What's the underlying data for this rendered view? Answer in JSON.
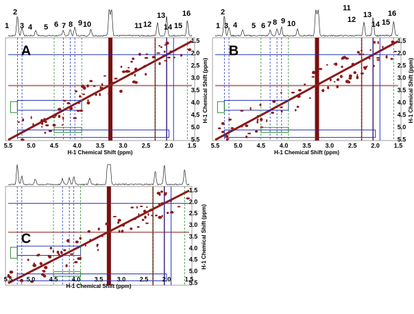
{
  "panels": [
    {
      "label": "A",
      "peaks": [
        "1",
        "2",
        "3",
        "4",
        "5",
        "6",
        "7",
        "8",
        "9",
        "10",
        "11",
        "12",
        "13",
        "14",
        "15",
        "16"
      ],
      "x_axis": {
        "title": "H-1 Chemical Shift (ppm)",
        "ticks": [
          "5.5",
          "5.0",
          "4.5",
          "4.0",
          "3.5",
          "3.0",
          "2.5",
          "2.0",
          "1.5"
        ]
      },
      "y_axis": {
        "title": "H-1 Chemical Shift (ppm)",
        "ticks": [
          "1.5",
          "2.0",
          "2.5",
          "3.0",
          "3.5",
          "4.0",
          "4.5",
          "5.0",
          "5.5"
        ]
      }
    },
    {
      "label": "B",
      "peaks": [
        "1",
        "2",
        "3",
        "4",
        "5",
        "6",
        "7",
        "8",
        "9",
        "10",
        "11",
        "12",
        "13",
        "14",
        "15",
        "16"
      ],
      "x_axis": {
        "title": "H-1 Chemical Shift (ppm)",
        "ticks": [
          "5.5",
          "5.0",
          "4.5",
          "4.0",
          "3.5",
          "3.0",
          "2.5",
          "2.0",
          "1.5"
        ]
      },
      "y_axis": {
        "title": "H-1 Chemical Shift (ppm)",
        "ticks": [
          "1.5",
          "2.0",
          "2.5",
          "3.0",
          "3.5",
          "4.0",
          "4.5",
          "5.0",
          "5.5"
        ]
      }
    },
    {
      "label": "C",
      "peaks": [],
      "x_axis": {
        "title": "H-1 Chemical Shift (ppm)",
        "ticks": [
          "5.5",
          "5.0",
          "4.5",
          "4.0",
          "3.5",
          "3.0",
          "2.5",
          "2.0",
          "1.5"
        ]
      },
      "y_axis": {
        "title": "H-1 Chemical Shift (ppm)",
        "ticks": [
          "1.5",
          "2.0",
          "2.5",
          "3.0",
          "3.5",
          "4.0",
          "4.5",
          "5.0",
          "5.5"
        ]
      }
    }
  ]
}
